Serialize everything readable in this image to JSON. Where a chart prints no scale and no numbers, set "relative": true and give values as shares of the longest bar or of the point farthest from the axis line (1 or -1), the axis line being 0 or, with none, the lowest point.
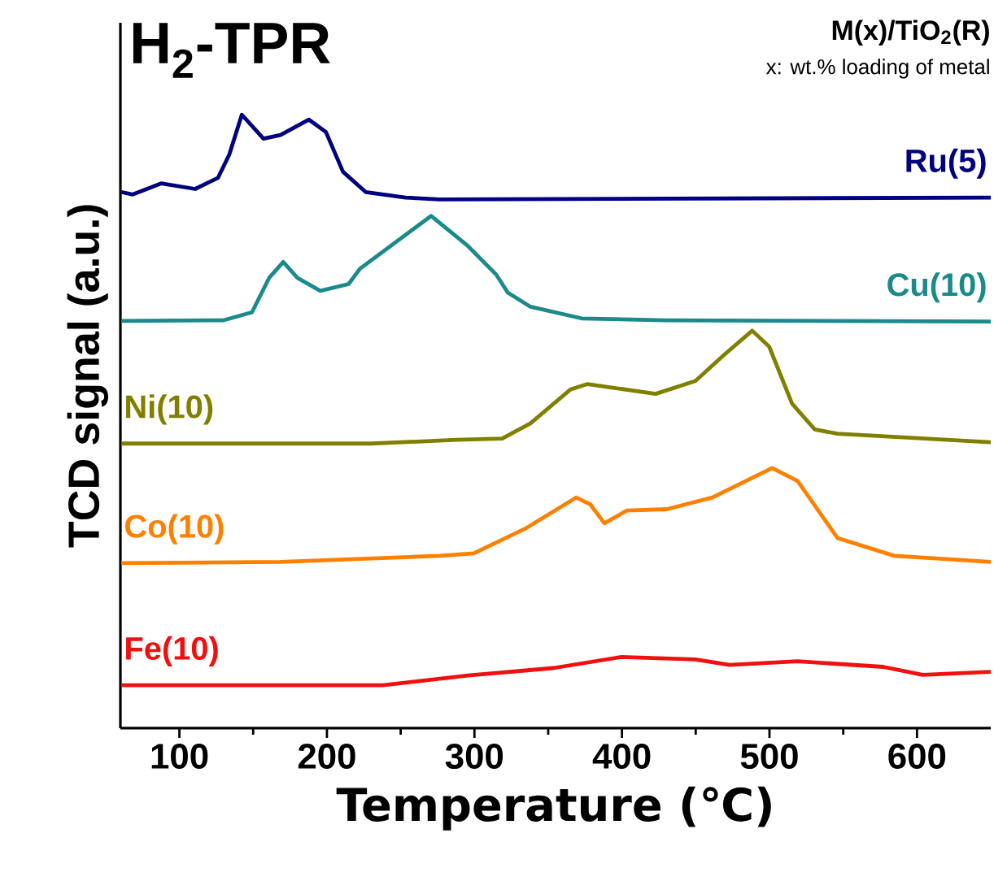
{
  "chart_data": {
    "type": "line",
    "title": "H$_{2}$-TPR",
    "xlabel": "Temperature (℃)",
    "ylabel": "TCD signal (a.u.)",
    "relative": true,
    "xlim": [
      60,
      650
    ],
    "xticks": [
      100,
      200,
      300,
      400,
      500,
      600
    ],
    "tick_labels": "x",
    "marker": "none",
    "line_style": "solid",
    "grid": false,
    "annotations": [
      "M(x)/TiO$_{2}$(R)",
      "x: wt.% loading of metal"
    ],
    "series": [
      {
        "name": "Ru(5)",
        "color": "#000080",
        "x": [
          60.6,
          68.3,
          87.6,
          110.7,
          126.1,
          133.8,
          142.3,
          157,
          168.5,
          187.8,
          199.3,
          210.9,
          226.3,
          253.3,
          276.4,
          650
        ],
        "values": [
          0.874,
          0.87,
          0.888,
          0.879,
          0.897,
          0.935,
          1.0,
          0.961,
          0.967,
          0.992,
          0.972,
          0.907,
          0.874,
          0.865,
          0.862,
          0.865
        ]
      },
      {
        "name": "Cu(10)",
        "color": "#1a8a8a",
        "x": [
          60.6,
          130,
          149.2,
          160.8,
          170.4,
          180,
          195.5,
          214.7,
          222.4,
          270.6,
          295.6,
          314.9,
          322.6,
          338,
          372.7,
          430,
          650
        ],
        "values": [
          0.664,
          0.665,
          0.678,
          0.734,
          0.76,
          0.734,
          0.713,
          0.724,
          0.749,
          0.835,
          0.786,
          0.739,
          0.71,
          0.687,
          0.668,
          0.665,
          0.663
        ]
      },
      {
        "name": "Ni(10)",
        "color": "#808000",
        "x": [
          60.6,
          230,
          288,
          318.8,
          338,
          365,
          376.6,
          422.8,
          449.8,
          469,
          488.3,
          499.8,
          515.3,
          530.7,
          546,
          650
        ],
        "values": [
          0.464,
          0.464,
          0.47,
          0.472,
          0.497,
          0.552,
          0.561,
          0.545,
          0.566,
          0.608,
          0.648,
          0.622,
          0.529,
          0.487,
          0.48,
          0.466
        ]
      },
      {
        "name": "Co(10)",
        "color": "#ff8000",
        "x": [
          60.6,
          168.5,
          276.4,
          299.5,
          334.2,
          368.9,
          378.5,
          388.1,
          403.5,
          430.5,
          461.3,
          501.8,
          519.1,
          546.1,
          584.6,
          650
        ],
        "values": [
          0.269,
          0.271,
          0.281,
          0.285,
          0.325,
          0.376,
          0.365,
          0.334,
          0.355,
          0.357,
          0.376,
          0.424,
          0.403,
          0.31,
          0.281,
          0.271
        ]
      },
      {
        "name": "Fe(10)",
        "color": "#f01010",
        "x": [
          60.6,
          237.9,
          295.6,
          353.4,
          399.7,
          449.8,
          472.9,
          519.1,
          577,
          603.9,
          650
        ],
        "values": [
          0.07,
          0.07,
          0.086,
          0.098,
          0.116,
          0.112,
          0.103,
          0.109,
          0.1,
          0.087,
          0.092
        ]
      }
    ]
  }
}
